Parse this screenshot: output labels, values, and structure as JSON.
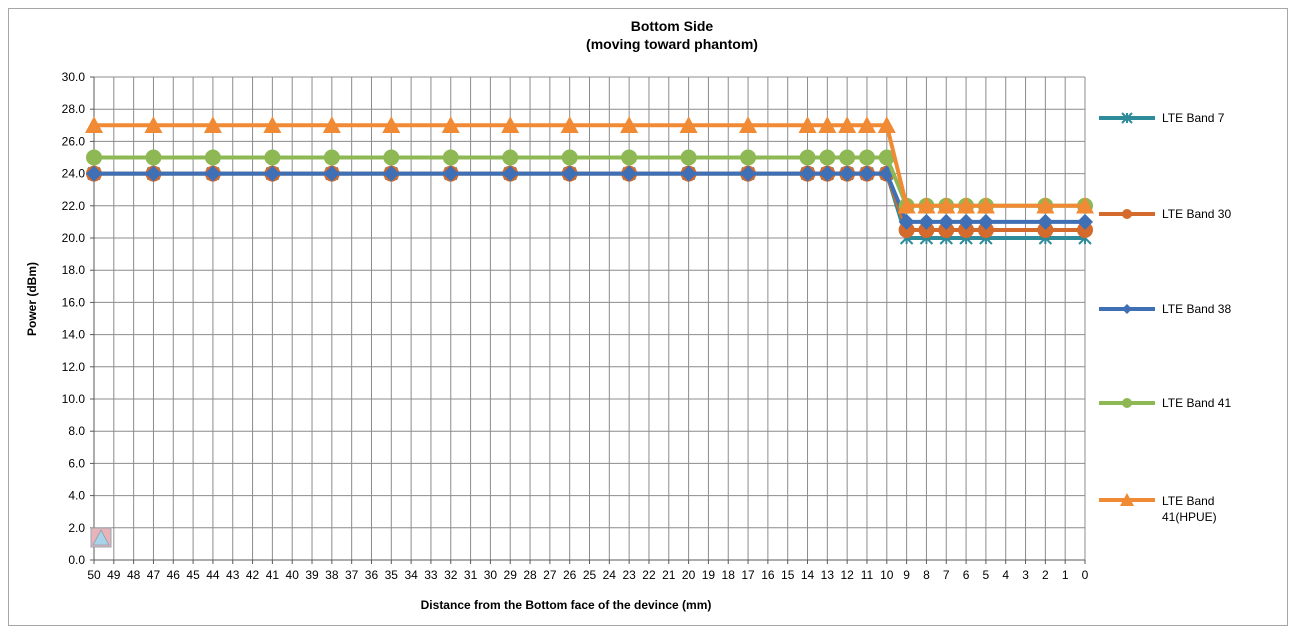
{
  "chart_data": {
    "type": "line",
    "title": "Bottom Side",
    "subtitle": "(moving toward phantom)",
    "xlabel": "Distance from the Bottom  face of the devince (mm)",
    "ylabel": "Power (dBm)",
    "ylim": [
      0,
      30
    ],
    "y_ticks": [
      "0.0",
      "2.0",
      "4.0",
      "6.0",
      "8.0",
      "10.0",
      "12.0",
      "14.0",
      "16.0",
      "18.0",
      "20.0",
      "22.0",
      "24.0",
      "26.0",
      "28.0",
      "30.0"
    ],
    "x_ticks": [
      50,
      49,
      48,
      47,
      46,
      45,
      44,
      43,
      42,
      41,
      40,
      39,
      38,
      37,
      36,
      35,
      34,
      33,
      32,
      31,
      30,
      29,
      28,
      27,
      26,
      25,
      24,
      23,
      22,
      21,
      20,
      19,
      18,
      17,
      16,
      15,
      14,
      13,
      12,
      11,
      10,
      9,
      8,
      7,
      6,
      5,
      4,
      3,
      2,
      1,
      0
    ],
    "x_reversed": true,
    "grid": true,
    "legend_position": "right",
    "x": [
      50,
      47,
      44,
      41,
      38,
      35,
      32,
      29,
      26,
      23,
      20,
      17,
      14,
      13,
      12,
      11,
      10,
      9,
      8,
      7,
      6,
      5,
      2,
      0
    ],
    "series": [
      {
        "name": "LTE Band 7",
        "color": "#2e8b9a",
        "marker": "star",
        "values": [
          24,
          24,
          24,
          24,
          24,
          24,
          24,
          24,
          24,
          24,
          24,
          24,
          24,
          24,
          24,
          24,
          24,
          20,
          20,
          20,
          20,
          20,
          20,
          20
        ]
      },
      {
        "name": "LTE Band 30",
        "color": "#d46a2c",
        "marker": "circle",
        "values": [
          24,
          24,
          24,
          24,
          24,
          24,
          24,
          24,
          24,
          24,
          24,
          24,
          24,
          24,
          24,
          24,
          24,
          20.5,
          20.5,
          20.5,
          20.5,
          20.5,
          20.5,
          20.5
        ]
      },
      {
        "name": "LTE Band 38",
        "color": "#3f6fb5",
        "marker": "diamond",
        "values": [
          24,
          24,
          24,
          24,
          24,
          24,
          24,
          24,
          24,
          24,
          24,
          24,
          24,
          24,
          24,
          24,
          24,
          21,
          21,
          21,
          21,
          21,
          21,
          21
        ]
      },
      {
        "name": "LTE Band 41",
        "color": "#8db854",
        "marker": "circle",
        "values": [
          25,
          25,
          25,
          25,
          25,
          25,
          25,
          25,
          25,
          25,
          25,
          25,
          25,
          25,
          25,
          25,
          25,
          22,
          22,
          22,
          22,
          22,
          22,
          22
        ]
      },
      {
        "name": "LTE Band 41(HPUE)",
        "legend_lines": [
          "LTE Band",
          "41(HPUE)"
        ],
        "color": "#f08a35",
        "marker": "triangle",
        "values": [
          27,
          27,
          27,
          27,
          27,
          27,
          27,
          27,
          27,
          27,
          27,
          27,
          27,
          27,
          27,
          27,
          27,
          22,
          22,
          22,
          22,
          22,
          22,
          22
        ]
      }
    ]
  }
}
